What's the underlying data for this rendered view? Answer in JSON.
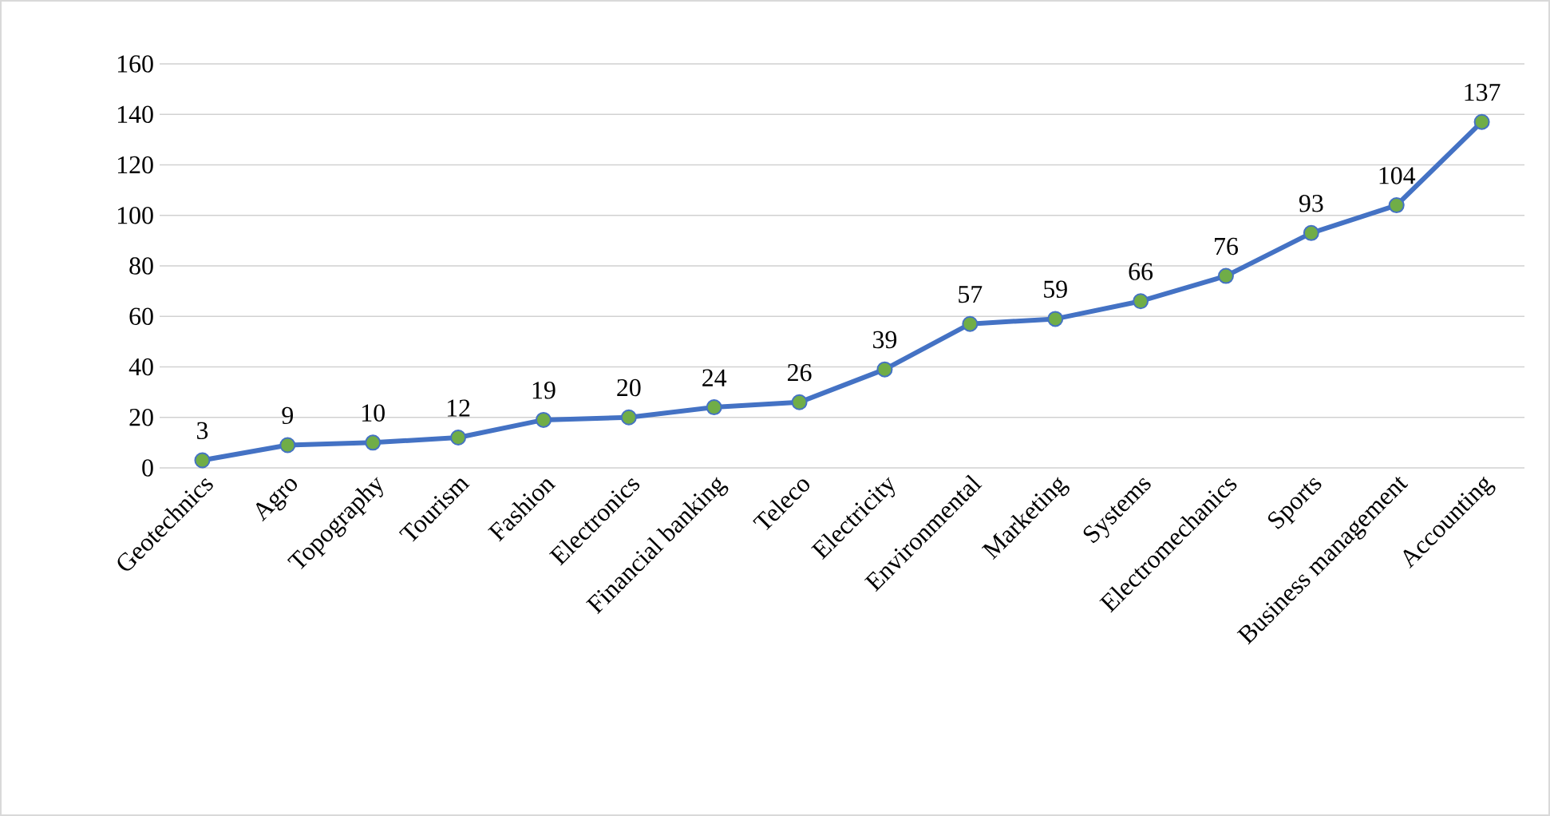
{
  "chart_data": {
    "type": "line",
    "categories": [
      "Geotechnics",
      "Agro",
      "Topography",
      "Tourism",
      "Fashion",
      "Electronics",
      "Financial banking",
      "Teleco",
      "Electricity",
      "Environmental",
      "Marketing",
      "Systems",
      "Electromechanics",
      "Sports",
      "Business management",
      "Accounting"
    ],
    "values": [
      3,
      9,
      10,
      12,
      19,
      20,
      24,
      26,
      39,
      57,
      59,
      66,
      76,
      93,
      104,
      137
    ],
    "color": "#4472c4",
    "marker": "circle",
    "line_style": "solid",
    "data_labels": true,
    "grid": "y",
    "ylim": [
      0,
      160
    ],
    "yticks": [
      0,
      20,
      40,
      60,
      80,
      100,
      120,
      140,
      160
    ]
  }
}
